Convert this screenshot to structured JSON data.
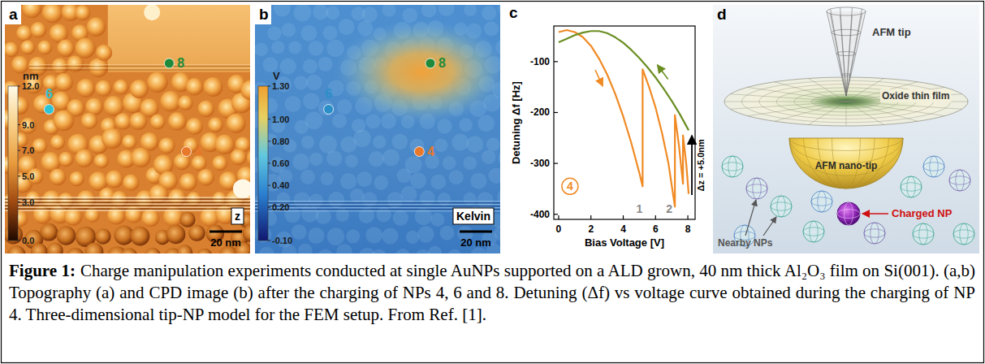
{
  "panels": {
    "a": {
      "letter": "a",
      "channel": "z",
      "scale_bar": "20 nm",
      "colorbar": {
        "unit": "nm",
        "range": [
          0,
          12
        ],
        "ticks": [
          {
            "value": 12,
            "label": "12.0"
          },
          {
            "value": 9,
            "label": "9.0"
          },
          {
            "value": 7,
            "label": "7.0"
          },
          {
            "value": 5,
            "label": "5.0"
          },
          {
            "value": 3,
            "label": "3.0"
          },
          {
            "value": 0,
            "label": "0.0"
          }
        ]
      },
      "markers": [
        {
          "label": "6",
          "color": "#2fc4d4"
        },
        {
          "label": "8",
          "color": "#1f8a3a"
        },
        {
          "label": "4",
          "color": "#e8782a"
        }
      ]
    },
    "b": {
      "letter": "b",
      "channel": "Kelvin",
      "scale_bar": "20 nm",
      "colorbar": {
        "unit": "V",
        "range": [
          -0.1,
          1.3
        ],
        "ticks": [
          {
            "value": 1.3,
            "label": "1.30"
          },
          {
            "value": 1,
            "label": "1.00"
          },
          {
            "value": 0.8,
            "label": "0.80"
          },
          {
            "value": 0.6,
            "label": "0.60"
          },
          {
            "value": 0.4,
            "label": "0.40"
          },
          {
            "value": 0.2,
            "label": "0.20"
          },
          {
            "value": -0.1,
            "label": "-0.10"
          }
        ]
      },
      "markers": [
        {
          "label": "6",
          "color": "#2a8fc8"
        },
        {
          "label": "8",
          "color": "#1f8a3a"
        },
        {
          "label": "4",
          "color": "#e8782a"
        }
      ]
    },
    "c": {
      "letter": "c"
    },
    "d": {
      "letter": "d",
      "labels": {
        "tip": "AFM tip",
        "film": "Oxide thin film",
        "nano_tip": "AFM nano-tip",
        "charged": "Charged NP",
        "nearby": "Nearby NPs"
      }
    }
  },
  "chart_data": {
    "type": "line",
    "x_label": "Bias Voltage [V]",
    "y_label": "Detuning Δf [Hz]",
    "xlim": [
      -0.3,
      8.45
    ],
    "ylim": [
      -410,
      -30
    ],
    "xticks": [
      0,
      2,
      4,
      6,
      8
    ],
    "yticks": [
      -100,
      -200,
      -300,
      -400
    ],
    "grid": false,
    "series": [
      {
        "color": "#f08a24",
        "x": [
          0,
          0.5,
          1,
          1.5,
          2,
          2.5,
          3,
          3.5,
          4,
          4.5,
          5,
          5.2,
          5.2,
          5.6,
          6,
          6.4,
          6.8,
          7.2,
          7.2,
          7.45,
          7.7,
          7.7,
          7.9,
          8.05
        ],
        "values": [
          -42,
          -38,
          -42,
          -52,
          -69,
          -94,
          -125,
          -163,
          -208,
          -260,
          -319,
          -345,
          -115,
          -150,
          -190,
          -240,
          -300,
          -385,
          -205,
          -265,
          -340,
          -245,
          -300,
          -360
        ]
      },
      {
        "color": "#6b8e23",
        "x": [
          8.05,
          7.5,
          7,
          6.5,
          6,
          5.5,
          5,
          4.5,
          4,
          3.5,
          3,
          2.5,
          2,
          1.5,
          1,
          0.5,
          0
        ],
        "values": [
          -235,
          -203,
          -177,
          -153,
          -131,
          -111,
          -93,
          -77,
          -63,
          -52,
          -44,
          -40,
          -40,
          -43,
          -48,
          -55,
          -62
        ]
      }
    ],
    "annotations": [
      {
        "text": "1",
        "x": 5.0,
        "y": -390,
        "color": "#8a8a8a"
      },
      {
        "text": "2",
        "x": 6.85,
        "y": -390,
        "color": "#8a8a8a"
      },
      {
        "text": "4",
        "x": 0.7,
        "y": -345,
        "color": "#f08a24",
        "marker": "circle"
      }
    ],
    "arrows": [
      {
        "text": "Δz = +5.0nm",
        "x": 8.25,
        "y_from": -362,
        "y_to": -245
      }
    ]
  },
  "caption": {
    "label": "Figure 1:",
    "text": "Charge manipulation experiments conducted at single AuNPs supported on a ALD grown, 40 nm thick Al₂O₃ film on Si(001). (a,b) Topography (a) and CPD image (b) after the charging of NPs 4, 6 and 8. Detuning (Δf) vs voltage curve obtained during the charging of NP 4. Three-dimensional tip-NP model for the FEM setup. From Ref. [1]."
  }
}
